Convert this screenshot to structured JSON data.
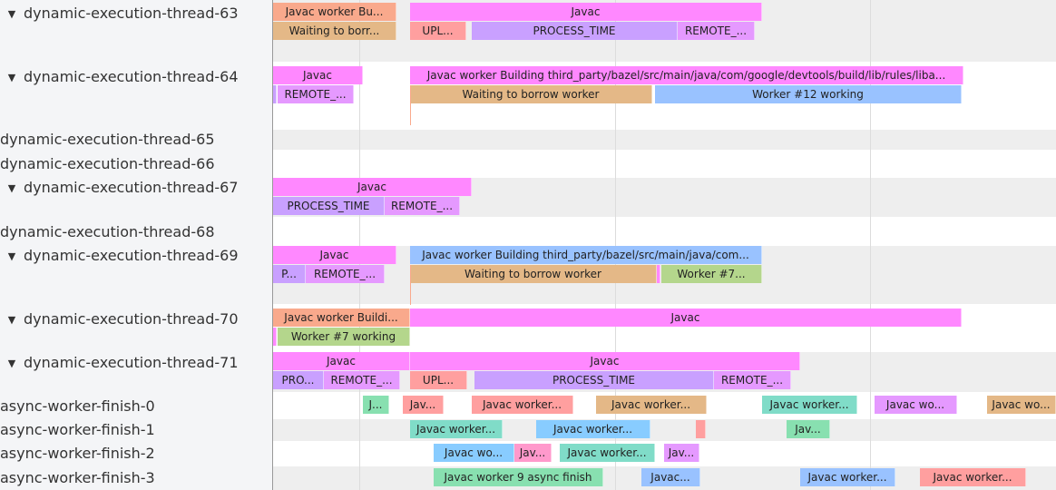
{
  "colors": {
    "pink": "#ff88ff",
    "salmon": "#f9a98c",
    "tan": "#e4b887",
    "red": "#ff9f9f",
    "purple": "#c9a0ff",
    "violet": "#e599ff",
    "blue": "#99c2ff",
    "skyblue": "#88ccff",
    "green": "#b4d68c",
    "teal": "#80dcc8",
    "mint": "#88e0b0",
    "rose": "#ff99cc"
  },
  "tracks": [
    {
      "name": "dynamic-execution-thread-63",
      "expanded": true,
      "slices": [
        {
          "label": "Javac worker Bu...",
          "color": "#f9a98c"
        },
        {
          "label": "Javac",
          "color": "#ff88ff"
        },
        {
          "label": "Waiting to borr...",
          "color": "#e4b887"
        },
        {
          "label": "UPL...",
          "color": "#ff9f9f"
        },
        {
          "label": "PROCESS_TIME",
          "color": "#c9a0ff"
        },
        {
          "label": "REMOTE_...",
          "color": "#e599ff"
        }
      ]
    },
    {
      "name": "dynamic-execution-thread-64",
      "expanded": true,
      "slices": [
        {
          "label": "Javac",
          "color": "#ff88ff"
        },
        {
          "label": "Javac worker Building third_party/bazel/src/main/java/com/google/devtools/build/lib/rules/liba...",
          "color": "#ff88ff"
        },
        {
          "label": "",
          "color": "#c9a0ff"
        },
        {
          "label": "REMOTE_...",
          "color": "#e599ff"
        },
        {
          "label": "Waiting to borrow worker",
          "color": "#e4b887"
        },
        {
          "label": "Worker #12 working",
          "color": "#99c2ff"
        }
      ]
    },
    {
      "name": "dynamic-execution-thread-65",
      "expanded": false,
      "slices": []
    },
    {
      "name": "dynamic-execution-thread-66",
      "expanded": false,
      "slices": []
    },
    {
      "name": "dynamic-execution-thread-67",
      "expanded": true,
      "slices": [
        {
          "label": "Javac",
          "color": "#ff88ff"
        },
        {
          "label": "PROCESS_TIME",
          "color": "#c9a0ff"
        },
        {
          "label": "REMOTE_...",
          "color": "#e599ff"
        }
      ]
    },
    {
      "name": "dynamic-execution-thread-68",
      "expanded": false,
      "slices": []
    },
    {
      "name": "dynamic-execution-thread-69",
      "expanded": true,
      "slices": [
        {
          "label": "Javac",
          "color": "#ff88ff"
        },
        {
          "label": "Javac worker Building third_party/bazel/src/main/java/com...",
          "color": "#99c2ff"
        },
        {
          "label": "P...",
          "color": "#c9a0ff"
        },
        {
          "label": "REMOTE_...",
          "color": "#e599ff"
        },
        {
          "label": "Waiting to borrow worker",
          "color": "#e4b887"
        },
        {
          "label": "",
          "color": "#ff88ff"
        },
        {
          "label": "Worker #7...",
          "color": "#b4d68c"
        }
      ]
    },
    {
      "name": "dynamic-execution-thread-70",
      "expanded": true,
      "slices": [
        {
          "label": "Javac worker Buildi...",
          "color": "#f9a98c"
        },
        {
          "label": "Javac",
          "color": "#ff88ff"
        },
        {
          "label": "",
          "color": "#ff88ff"
        },
        {
          "label": "Worker #7 working",
          "color": "#b4d68c"
        }
      ]
    },
    {
      "name": "dynamic-execution-thread-71",
      "expanded": true,
      "slices": [
        {
          "label": "Javac",
          "color": "#ff88ff"
        },
        {
          "label": "Javac",
          "color": "#ff88ff"
        },
        {
          "label": "PRO...",
          "color": "#c9a0ff"
        },
        {
          "label": "REMOTE_...",
          "color": "#e599ff"
        },
        {
          "label": "UPL...",
          "color": "#ff9f9f"
        },
        {
          "label": "PROCESS_TIME",
          "color": "#c9a0ff"
        },
        {
          "label": "REMOTE_...",
          "color": "#e599ff"
        }
      ]
    },
    {
      "name": "async-worker-finish-0",
      "expanded": false,
      "slices": [
        {
          "label": "J...",
          "color": "#88e0b0"
        },
        {
          "label": "Jav...",
          "color": "#ff9f9f"
        },
        {
          "label": "Javac worker...",
          "color": "#ff9f9f"
        },
        {
          "label": "Javac worker...",
          "color": "#e4b887"
        },
        {
          "label": "Javac worker...",
          "color": "#80dcc8"
        },
        {
          "label": "Javac wo...",
          "color": "#e599ff"
        },
        {
          "label": "Javac wo...",
          "color": "#e4b887"
        }
      ]
    },
    {
      "name": "async-worker-finish-1",
      "expanded": false,
      "slices": [
        {
          "label": "Javac worker...",
          "color": "#80dcc8"
        },
        {
          "label": "Javac worker...",
          "color": "#88ccff"
        },
        {
          "label": "",
          "color": "#ff9f9f"
        },
        {
          "label": "Jav...",
          "color": "#88e0b0"
        }
      ]
    },
    {
      "name": "async-worker-finish-2",
      "expanded": false,
      "slices": [
        {
          "label": "Javac wo...",
          "color": "#88ccff"
        },
        {
          "label": "Jav...",
          "color": "#ff99cc"
        },
        {
          "label": "Javac worker...",
          "color": "#80dcc8"
        },
        {
          "label": "Jav...",
          "color": "#e599ff"
        }
      ]
    },
    {
      "name": "async-worker-finish-3",
      "expanded": false,
      "slices": [
        {
          "label": "Javac worker 9 async finish",
          "color": "#88e0b0"
        },
        {
          "label": "Javac...",
          "color": "#99c2ff"
        },
        {
          "label": "Javac worker...",
          "color": "#99c2ff"
        },
        {
          "label": "Javac worker...",
          "color": "#ff9f9f"
        }
      ]
    }
  ]
}
